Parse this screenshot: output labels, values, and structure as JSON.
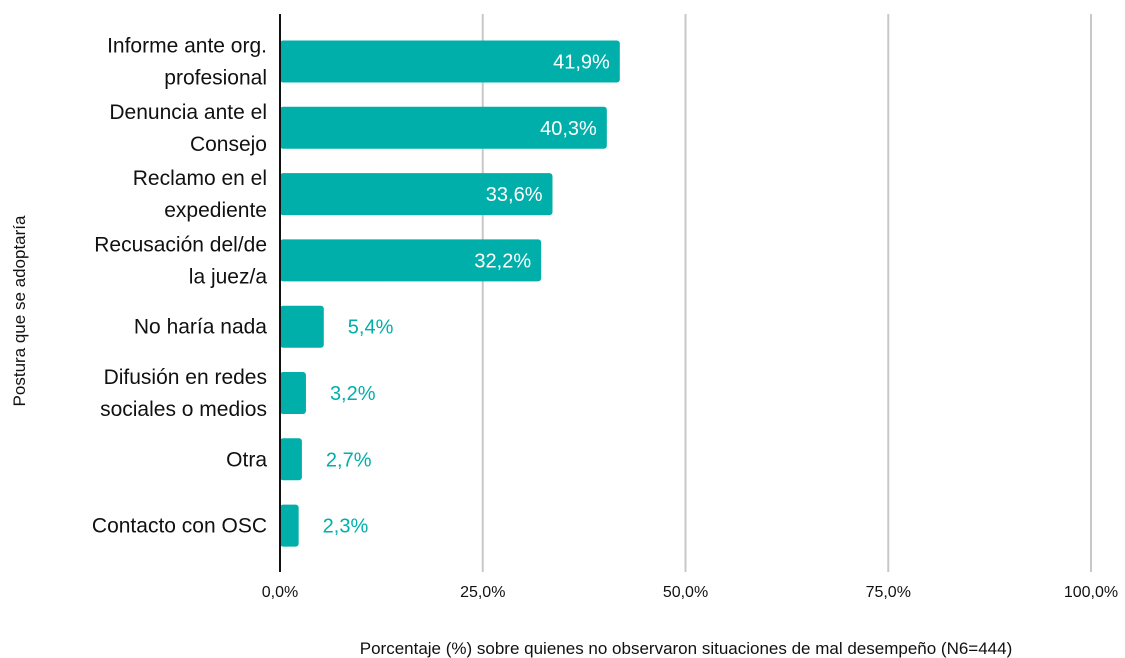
{
  "chart_data": {
    "type": "bar",
    "orientation": "horizontal",
    "categories": [
      [
        "Informe ante org.",
        "profesional"
      ],
      [
        "Denuncia ante el",
        "Consejo"
      ],
      [
        "Reclamo en el",
        "expediente"
      ],
      [
        "Recusación del/de",
        "la juez/a"
      ],
      [
        "No haría nada"
      ],
      [
        "Difusión en redes",
        "sociales o medios"
      ],
      [
        "Otra"
      ],
      [
        "Contacto con OSC"
      ]
    ],
    "values": [
      41.9,
      40.3,
      33.6,
      32.2,
      5.4,
      3.2,
      2.7,
      2.3
    ],
    "value_labels": [
      "41,9%",
      "40,3%",
      "33,6%",
      "32,2%",
      "5,4%",
      "3,2%",
      "2,7%",
      "2,3%"
    ],
    "xlim": [
      0,
      100
    ],
    "ticks": [
      0,
      25,
      50,
      75,
      100
    ],
    "tick_labels": [
      "0,0%",
      "25,0%",
      "50,0%",
      "75,0%",
      "100,0%"
    ],
    "xlabel": "Porcentaje (%) sobre quienes no observaron situaciones de mal desempeño (N6=444)",
    "ylabel": "Postura que se adoptaría",
    "bar_color": "#00AFAA",
    "grid": true,
    "legend": "none"
  }
}
